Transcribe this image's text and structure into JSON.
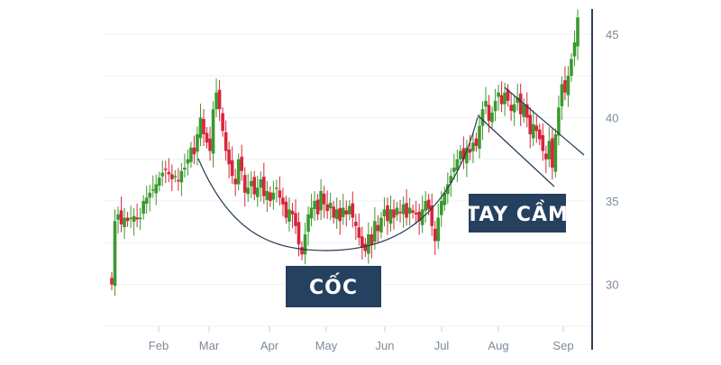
{
  "chart_data": {
    "type": "candlestick",
    "x_tick_labels": [
      "Feb",
      "Mar",
      "Apr",
      "May",
      "Jun",
      "Jul",
      "Aug",
      "Sep"
    ],
    "y_tick_labels": [
      "30",
      "35",
      "40",
      "45"
    ],
    "y_ticks": [
      30,
      35,
      40,
      45
    ],
    "ylim": [
      27.5,
      46.5
    ],
    "grid": true,
    "y_axis_side": "right",
    "colors": {
      "up": "#3a9a2e",
      "down": "#d7263d",
      "line": "#25384f",
      "label_bg": "#26405f"
    },
    "close_series": [
      30.0,
      33.8,
      34.2,
      33.6,
      34.0,
      33.8,
      34.0,
      34.1,
      33.9,
      34.0,
      35.0,
      35.2,
      35.5,
      35.7,
      36.0,
      36.4,
      36.7,
      36.9,
      36.6,
      36.3,
      36.5,
      36.2,
      36.8,
      37.0,
      37.5,
      38.2,
      37.8,
      39.0,
      40.0,
      39.0,
      38.5,
      38.0,
      40.5,
      41.5,
      40.5,
      39.2,
      38.0,
      37.2,
      36.5,
      36.0,
      37.5,
      36.8,
      35.5,
      35.8,
      36.2,
      35.4,
      35.8,
      36.3,
      35.3,
      35.6,
      35.0,
      35.5,
      35.8,
      35.2,
      34.8,
      34.0,
      34.5,
      34.2,
      33.5,
      32.4,
      31.8,
      33.0,
      34.2,
      34.6,
      35.0,
      34.2,
      35.6,
      34.8,
      34.4,
      34.9,
      34.0,
      34.5,
      33.8,
      34.6,
      34.2,
      34.7,
      34.0,
      33.5,
      32.8,
      32.2,
      32.0,
      33.0,
      32.4,
      33.8,
      33.2,
      34.0,
      34.5,
      33.8,
      34.5,
      34.0,
      34.6,
      34.3,
      34.8,
      34.0,
      34.6,
      34.3,
      34.2,
      33.8,
      34.5,
      35.0,
      34.5,
      33.5,
      32.6,
      34.0,
      35.0,
      35.5,
      36.0,
      36.5,
      37.0,
      37.5,
      38.0,
      37.5,
      38.2,
      37.9,
      38.5,
      38.3,
      39.5,
      40.5,
      41.0,
      39.8,
      40.3,
      41.0,
      41.5,
      40.8,
      41.5,
      41.0,
      40.4,
      40.8,
      41.2,
      40.2,
      40.8,
      40.0,
      39.0,
      39.6,
      39.2,
      38.7,
      38.0,
      37.5,
      38.6,
      37.0,
      39.0,
      40.6,
      42.0,
      41.5,
      42.5,
      43.5,
      44.5,
      46.0
    ],
    "annotations": [
      {
        "text": "CỐC",
        "shape": "cup"
      },
      {
        "text": "TAY CẦM",
        "shape": "handle"
      }
    ]
  }
}
